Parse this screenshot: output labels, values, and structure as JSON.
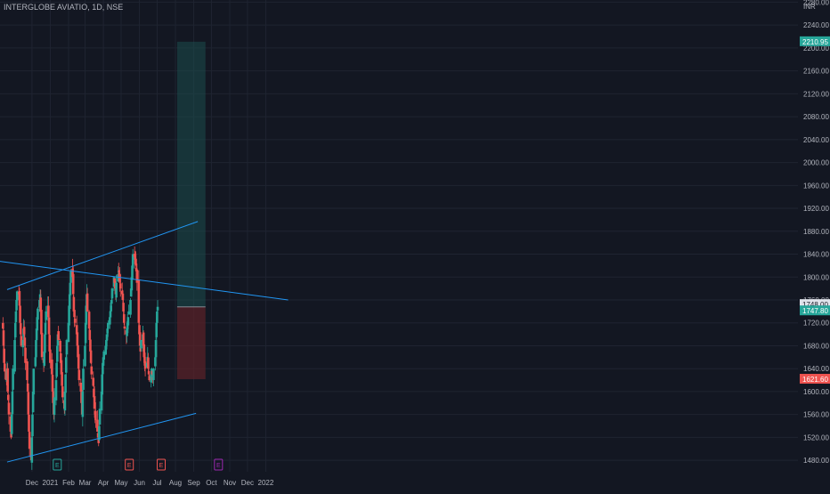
{
  "header": {
    "symbol": "INTERGLOBE AVIATIO, 1D, NSE",
    "currency": "INR"
  },
  "chart_data": {
    "type": "candlestick",
    "y_ticks": [
      1480,
      1520,
      1560,
      1600,
      1640,
      1680,
      1720,
      1760,
      1800,
      1840,
      1880,
      1920,
      1960,
      2000,
      2040,
      2080,
      2120,
      2160,
      2200,
      2240,
      2280
    ],
    "y_tick_labels": [
      "1480.00",
      "1520.00",
      "1560.00",
      "1600.00",
      "1640.00",
      "1680.00",
      "1720.00",
      "1760.00",
      "1800.00",
      "1840.00",
      "1880.00",
      "1920.00",
      "1960.00",
      "2000.00",
      "2040.00",
      "2080.00",
      "2120.00",
      "2160.00",
      "2200.00",
      "2240.00",
      "2280.00"
    ],
    "ylim": [
      1460,
      2290
    ],
    "x_labels": [
      "Dec",
      "2021",
      "Feb",
      "Mar",
      "Apr",
      "May",
      "Jun",
      "Jul",
      "Aug",
      "Sep",
      "Oct",
      "Nov",
      "Dec",
      "2022"
    ],
    "price_tags": [
      {
        "label": "2210.95",
        "value": 2210.95,
        "color": "#26a69a"
      },
      {
        "label": "1748.00",
        "value": 1752,
        "color": "#e0e3eb"
      },
      {
        "label": "1747.80",
        "value": 1741,
        "color": "#26a69a"
      },
      {
        "label": "1621.60",
        "value": 1621.6,
        "color": "#ef5350"
      }
    ],
    "position": {
      "entry": 1747.8,
      "target": 2210.95,
      "stop": 1621.6,
      "start_date": "2021-08-25",
      "end_date": "2021-10-12"
    },
    "events": [
      {
        "date": "2021-02-03",
        "letter": "E",
        "color": "#26a69a"
      },
      {
        "date": "2021-06-05",
        "letter": "E",
        "color": "#ef5350"
      },
      {
        "date": "2021-07-29",
        "letter": "E",
        "color": "#ef5350"
      },
      {
        "date": "2021-11-03",
        "letter": "E",
        "color": "#9c27b0"
      }
    ],
    "trendlines": [
      {
        "name": "upper-channel",
        "p1": [
          "2020-11-10",
          1778
        ],
        "p2": [
          "2021-09-29",
          1897
        ],
        "color": "#2196f3"
      },
      {
        "name": "lower-channel",
        "p1": [
          "2020-11-10",
          1477
        ],
        "p2": [
          "2021-09-26",
          1562
        ],
        "color": "#2196f3"
      },
      {
        "name": "descending-line",
        "p1": [
          "2020-10-10",
          1830
        ],
        "p2": [
          "2022-03-01",
          1760
        ],
        "color": "#2196f3"
      }
    ],
    "colors": {
      "up": "#26a69a",
      "down": "#ef5350",
      "grid": "#1f2431",
      "axis_text": "#b2b5be"
    },
    "series": [
      {
        "start_date": "2020-11-03",
        "closes": [
          1710,
          1680,
          1650,
          1635,
          1620,
          1640,
          1600,
          1585,
          1560,
          1530,
          1520,
          1560,
          1600,
          1640,
          1690,
          1720,
          1740,
          1760,
          1775,
          1770,
          1750,
          1720,
          1700,
          1680,
          1690,
          1710,
          1700,
          1680,
          1650,
          1620,
          1600,
          1560,
          1530,
          1500,
          1480,
          1520,
          1560,
          1600,
          1640,
          1660,
          1690,
          1710,
          1730,
          1745,
          1760,
          1770,
          1740,
          1700,
          1660,
          1650,
          1670,
          1700,
          1720,
          1740,
          1750,
          1730,
          1700,
          1670,
          1650,
          1630,
          1600,
          1580,
          1560,
          1590,
          1620,
          1650,
          1680,
          1700,
          1690,
          1670,
          1650,
          1630,
          1610,
          1590,
          1570,
          1600,
          1630,
          1660,
          1690,
          1720,
          1750,
          1770,
          1790,
          1810,
          1800,
          1770,
          1740,
          1730,
          1720,
          1700,
          1680,
          1660,
          1640,
          1620,
          1600,
          1580,
          1560,
          1600,
          1640,
          1680,
          1720,
          1750,
          1770,
          1740,
          1710,
          1690,
          1670,
          1650,
          1630,
          1610,
          1590,
          1570,
          1560,
          1550,
          1530,
          1520,
          1510,
          1540,
          1570,
          1600,
          1630,
          1650,
          1660,
          1670,
          1680,
          1690,
          1700,
          1710,
          1720,
          1730,
          1740,
          1750,
          1760,
          1780,
          1800,
          1790,
          1780,
          1770,
          1790,
          1805,
          1810,
          1800,
          1790,
          1780,
          1770,
          1760,
          1740,
          1720,
          1710,
          1700,
          1710,
          1720,
          1730,
          1740,
          1760,
          1780,
          1800,
          1820,
          1840,
          1835,
          1830,
          1820,
          1810,
          1790,
          1720,
          1700,
          1680,
          1670,
          1690,
          1700,
          1680,
          1660,
          1650,
          1640,
          1650,
          1660,
          1640,
          1630,
          1620,
          1630,
          1640,
          1630,
          1620,
          1640,
          1660,
          1690,
          1720,
          1740,
          1748
        ]
      }
    ]
  }
}
